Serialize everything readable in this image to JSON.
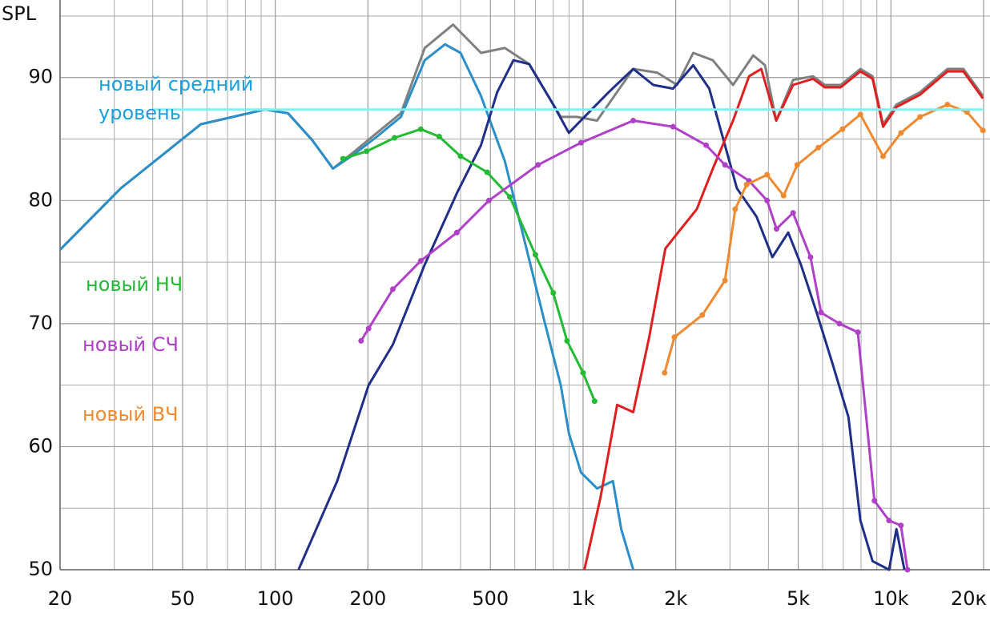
{
  "chart_data": {
    "type": "line",
    "y_label": "SPL",
    "log_x": true,
    "grid": true,
    "xlim": [
      20,
      20000
    ],
    "ylim": [
      50,
      96.3
    ],
    "xticks": [
      20,
      50,
      100,
      200,
      500,
      {
        "value": 1000,
        "label": "1k"
      },
      {
        "value": 2000,
        "label": "2k"
      },
      {
        "value": 5000,
        "label": "5k"
      },
      {
        "value": 10000,
        "label": "10k"
      },
      {
        "value": 20000,
        "label": "20к"
      }
    ],
    "yticks": [
      50,
      60,
      70,
      80,
      90
    ],
    "minor_xticks": [
      30,
      40,
      60,
      70,
      80,
      90,
      300,
      400,
      600,
      700,
      800,
      900,
      3000,
      4000,
      6000,
      7000,
      8000,
      9000
    ],
    "minor_yticks": [
      55,
      65,
      75,
      85,
      95
    ],
    "series": [
      {
        "color": "#808080",
        "markers": false,
        "x": [
          20,
          31.5,
          57.3,
          92.5,
          110,
          132,
          154,
          179,
          214,
          256,
          306,
          378,
          466,
          557,
          668,
          846,
          954,
          1110,
          1455,
          1740,
          2020,
          2280,
          2640,
          3070,
          3570,
          3900,
          4240,
          4810,
          5580,
          6100,
          6870,
          7960,
          8720,
          9430,
          10420,
          12430,
          15260,
          17200,
          19900
        ],
        "values": [
          76.0,
          81.0,
          86.2,
          87.4,
          87.1,
          84.9,
          82.6,
          83.9,
          85.5,
          87.1,
          92.4,
          94.3,
          92.0,
          92.4,
          91.1,
          86.8,
          86.8,
          86.5,
          90.7,
          90.4,
          89.4,
          92.0,
          91.4,
          89.4,
          91.8,
          91.0,
          86.5,
          89.8,
          90.1,
          89.4,
          89.4,
          90.7,
          90.1,
          86.2,
          87.8,
          88.8,
          90.7,
          90.7,
          88.5
        ]
      },
      {
        "color": "#2a8fc8",
        "markers": false,
        "x": [
          20,
          31.5,
          57.3,
          92.5,
          110,
          132,
          154,
          179,
          214,
          256,
          306,
          356,
          400,
          466,
          557,
          646,
          749,
          846,
          899,
          985,
          1110,
          1250,
          1330,
          1455
        ],
        "values": [
          76.0,
          81.0,
          86.2,
          87.4,
          87.1,
          84.9,
          82.6,
          83.7,
          85.2,
          86.8,
          91.4,
          92.7,
          92.0,
          88.5,
          83.2,
          76.7,
          70.2,
          65.0,
          61.1,
          57.9,
          56.6,
          57.2,
          53.3,
          50
        ]
      },
      {
        "color": "#1f2f8a",
        "markers": false,
        "x": [
          119,
          159,
          201,
          241,
          306,
          389,
          466,
          526,
          594,
          668,
          800,
          899,
          1010,
          1210,
          1455,
          1690,
          1960,
          2280,
          2570,
          2890,
          3160,
          3660,
          4120,
          4640,
          5100,
          5740,
          6470,
          7280,
          7960,
          8720,
          9860,
          10420,
          11060
        ],
        "values": [
          50,
          57.2,
          65.0,
          68.3,
          74.8,
          80.6,
          84.5,
          88.8,
          91.4,
          91.1,
          87.8,
          85.5,
          86.8,
          88.8,
          90.7,
          89.4,
          89.1,
          91.0,
          89.1,
          84.5,
          81.0,
          78.7,
          75.4,
          77.4,
          74.8,
          70.9,
          66.7,
          62.4,
          54.0,
          50.7,
          50,
          53.3,
          50
        ]
      },
      {
        "color": "#e02020",
        "markers": false,
        "x": [
          1010,
          1140,
          1290,
          1455,
          1640,
          1850,
          2080,
          2340,
          2640,
          3070,
          3460,
          3790,
          4240,
          4810,
          5580,
          6100,
          6870,
          7960,
          8720,
          9430,
          10420,
          12430,
          15260,
          17200,
          19900
        ],
        "values": [
          50,
          55.9,
          63.4,
          62.8,
          68.9,
          76.1,
          77.7,
          79.3,
          82.6,
          86.5,
          90.1,
          90.7,
          86.5,
          89.4,
          89.9,
          89.2,
          89.2,
          90.5,
          89.9,
          86.0,
          87.6,
          88.6,
          90.5,
          90.5,
          88.3
        ]
      },
      {
        "name": "новый НЧ",
        "color": "#22bb33",
        "markers": true,
        "x": [
          166,
          198,
          244,
          297,
          341,
          400,
          488,
          578,
          700,
          800,
          887,
          1000,
          1090
        ],
        "values": [
          83.4,
          84.0,
          85.1,
          85.8,
          85.2,
          83.6,
          82.3,
          80.3,
          75.6,
          72.5,
          68.6,
          66.0,
          63.7
        ]
      },
      {
        "name": "новый СЧ",
        "color": "#b040c8",
        "markers": true,
        "x": [
          190,
          201,
          241,
          297,
          389,
          494,
          714,
          985,
          1455,
          1960,
          2510,
          2890,
          3460,
          3960,
          4250,
          4810,
          5480,
          5930,
          6800,
          7810,
          8840,
          9860,
          10780,
          11320
        ],
        "values": [
          68.6,
          69.6,
          72.8,
          75.1,
          77.4,
          80.0,
          82.9,
          84.7,
          86.5,
          86.0,
          84.5,
          82.9,
          81.6,
          80.0,
          77.7,
          79.0,
          75.4,
          70.9,
          70.0,
          69.3,
          55.6,
          54.0,
          53.6,
          50
        ]
      },
      {
        "name": "новый ВЧ",
        "color": "#f08a30",
        "markers": true,
        "x": [
          1840,
          1980,
          2440,
          2890,
          3120,
          3400,
          3960,
          4480,
          4960,
          5810,
          6960,
          7960,
          9430,
          10780,
          12430,
          15260,
          17660,
          19900
        ],
        "values": [
          66.0,
          68.9,
          70.7,
          73.5,
          79.3,
          81.3,
          82.1,
          80.4,
          82.9,
          84.3,
          85.8,
          87.0,
          83.6,
          85.5,
          86.8,
          87.8,
          87.2,
          85.7
        ]
      },
      {
        "name": "новый средний уровень",
        "color": "#80f0f0",
        "markers": false,
        "x": [
          40,
          20000
        ],
        "values": [
          87.4,
          87.4
        ]
      }
    ]
  }
}
